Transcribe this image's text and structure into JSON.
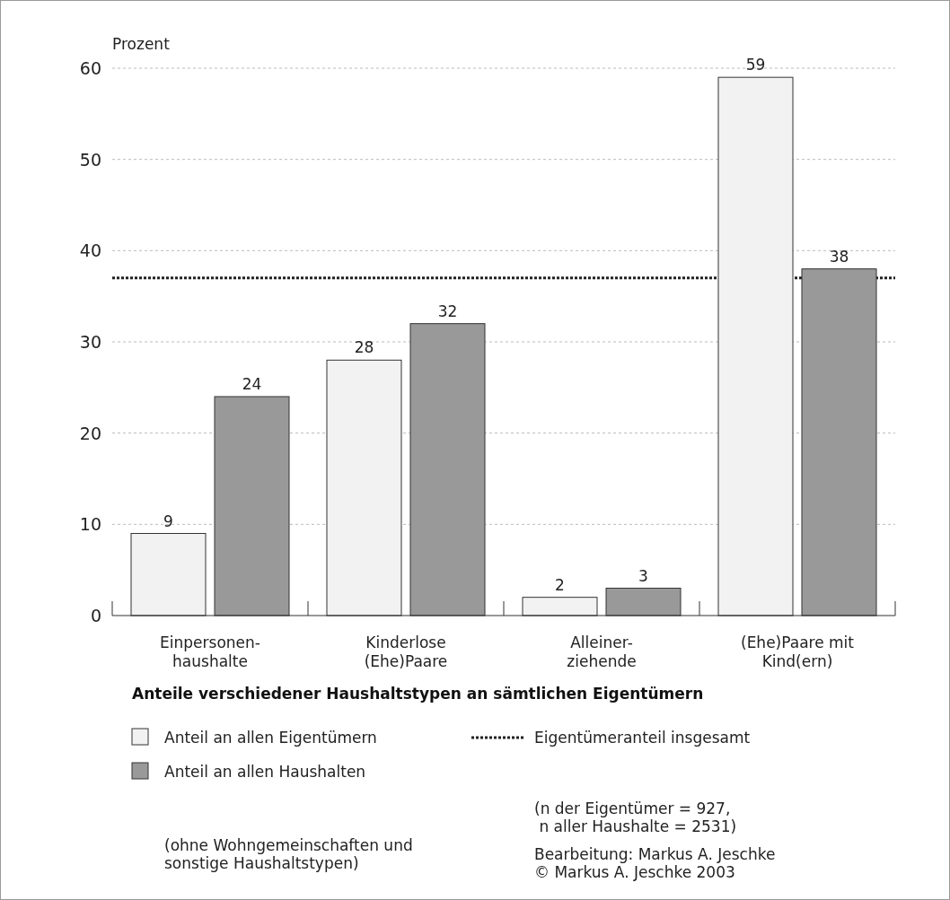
{
  "chart_data": {
    "type": "bar",
    "title": "Anteile verschiedener Haushaltstypen an sämtlichen Eigentümern",
    "ylabel": "Prozent",
    "categories": [
      "Einpersonen-\nhaushalte",
      "Kinderlose\n(Ehe)Paare",
      "Alleiner-\nziehende",
      "(Ehe)Paare mit\nKind(ern)"
    ],
    "series": [
      {
        "name": "Anteil an allen Eigentümern",
        "color": "#f2f2f2",
        "values": [
          9,
          28,
          2,
          59
        ]
      },
      {
        "name": "Anteil an allen Haushalten",
        "color": "#999999",
        "values": [
          24,
          32,
          3,
          38
        ]
      }
    ],
    "ylim": [
      0,
      60
    ],
    "yticks": [
      0,
      10,
      20,
      30,
      40,
      50,
      60
    ],
    "grid": "y",
    "data_labels": true,
    "legend": "bottom",
    "ref_lines": [
      {
        "axis": "y",
        "value": 37,
        "label": "Eigentümeranteil insgesamt",
        "color": "#222222",
        "line_style": "dotted"
      }
    ],
    "annotations": [
      "(ohne Wohngemeinschaften und\nsonstige Haushaltstypen)",
      "(n der Eigentümer = 927,\n n aller Haushalte = 2531)",
      "Bearbeitung: Markus A. Jeschke\n© Markus A. Jeschke 2003"
    ]
  }
}
